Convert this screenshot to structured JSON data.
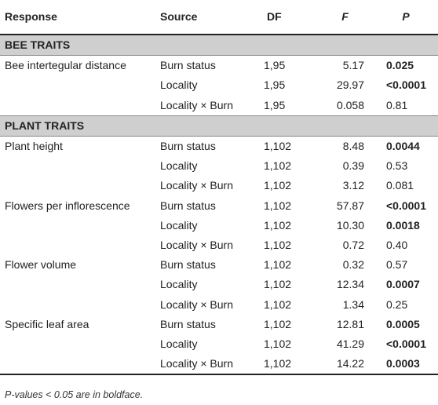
{
  "header": {
    "response": "Response",
    "source": "Source",
    "df": "DF",
    "f": "F",
    "p": "P"
  },
  "sections": [
    {
      "title": "BEE TRAITS",
      "rows": [
        {
          "response": "Bee intertegular distance",
          "source": "Burn status",
          "df": "1,95",
          "f": "5.17",
          "p": "0.025",
          "bold": true
        },
        {
          "response": "",
          "source": "Locality",
          "df": "1,95",
          "f": "29.97",
          "p": "<0.0001",
          "bold": true
        },
        {
          "response": "",
          "source": "Locality × Burn",
          "df": "1,95",
          "f": "0.058",
          "p": "0.81",
          "bold": false
        }
      ]
    },
    {
      "title": "PLANT TRAITS",
      "rows": [
        {
          "response": "Plant height",
          "source": "Burn status",
          "df": "1,102",
          "f": "8.48",
          "p": "0.0044",
          "bold": true
        },
        {
          "response": "",
          "source": "Locality",
          "df": "1,102",
          "f": "0.39",
          "p": "0.53",
          "bold": false
        },
        {
          "response": "",
          "source": "Locality × Burn",
          "df": "1,102",
          "f": "3.12",
          "p": "0.081",
          "bold": false
        },
        {
          "response": "Flowers per inflorescence",
          "source": "Burn status",
          "df": "1,102",
          "f": "57.87",
          "p": "<0.0001",
          "bold": true
        },
        {
          "response": "",
          "source": "Locality",
          "df": "1,102",
          "f": "10.30",
          "p": "0.0018",
          "bold": true
        },
        {
          "response": "",
          "source": "Locality × Burn",
          "df": "1,102",
          "f": "0.72",
          "p": "0.40",
          "bold": false
        },
        {
          "response": "Flower volume",
          "source": "Burn status",
          "df": "1,102",
          "f": "0.32",
          "p": "0.57",
          "bold": false
        },
        {
          "response": "",
          "source": "Locality",
          "df": "1,102",
          "f": "12.34",
          "p": "0.0007",
          "bold": true
        },
        {
          "response": "",
          "source": "Locality × Burn",
          "df": "1,102",
          "f": "1.34",
          "p": "0.25",
          "bold": false
        },
        {
          "response": "Specific leaf area",
          "source": "Burn status",
          "df": "1,102",
          "f": "12.81",
          "p": "0.0005",
          "bold": true
        },
        {
          "response": "",
          "source": "Locality",
          "df": "1,102",
          "f": "41.29",
          "p": "<0.0001",
          "bold": true
        },
        {
          "response": "",
          "source": "Locality × Burn",
          "df": "1,102",
          "f": "14.22",
          "p": "0.0003",
          "bold": true
        }
      ]
    }
  ],
  "footnote": "P-values < 0.05 are in boldface."
}
